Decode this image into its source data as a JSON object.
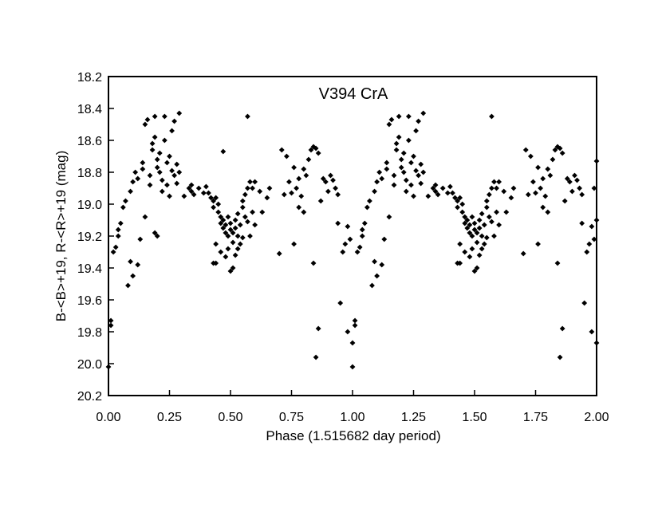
{
  "chart_data": {
    "type": "scatter",
    "title": "V394 CrA",
    "xlabel": "Phase (1.515682 day period)",
    "ylabel": "B-<B>+19, R-<R>+19 (mag)",
    "xlim": [
      0.0,
      2.0
    ],
    "ylim": [
      20.2,
      18.2
    ],
    "y_inverted": true,
    "grid": false,
    "legend": "none",
    "marker": "diamond",
    "marker_color": "#000000",
    "x_ticks": [
      "0.00",
      "0.25",
      "0.50",
      "0.75",
      "1.00",
      "1.25",
      "1.50",
      "1.75",
      "2.00"
    ],
    "y_ticks": [
      "18.2",
      "18.4",
      "18.6",
      "18.8",
      "19.0",
      "19.2",
      "19.4",
      "19.6",
      "19.8",
      "20.0",
      "20.2"
    ],
    "points": [
      [
        0.0,
        20.02
      ],
      [
        0.01,
        19.73
      ],
      [
        0.01,
        19.76
      ],
      [
        0.02,
        19.3
      ],
      [
        0.03,
        19.27
      ],
      [
        0.04,
        19.2
      ],
      [
        0.04,
        19.16
      ],
      [
        0.05,
        19.12
      ],
      [
        0.06,
        19.02
      ],
      [
        0.07,
        18.98
      ],
      [
        0.08,
        19.51
      ],
      [
        0.09,
        19.36
      ],
      [
        0.1,
        19.45
      ],
      [
        0.09,
        18.92
      ],
      [
        0.1,
        18.86
      ],
      [
        0.11,
        18.8
      ],
      [
        0.12,
        19.38
      ],
      [
        0.12,
        18.84
      ],
      [
        0.13,
        19.22
      ],
      [
        0.14,
        18.74
      ],
      [
        0.15,
        19.08
      ],
      [
        0.14,
        18.78
      ],
      [
        0.15,
        18.5
      ],
      [
        0.16,
        18.47
      ],
      [
        0.17,
        18.88
      ],
      [
        0.17,
        18.82
      ],
      [
        0.18,
        18.66
      ],
      [
        0.18,
        18.62
      ],
      [
        0.19,
        18.58
      ],
      [
        0.19,
        18.45
      ],
      [
        0.2,
        18.72
      ],
      [
        0.2,
        18.77
      ],
      [
        0.21,
        18.8
      ],
      [
        0.21,
        18.68
      ],
      [
        0.22,
        18.92
      ],
      [
        0.22,
        18.85
      ],
      [
        0.23,
        18.45
      ],
      [
        0.23,
        18.6
      ],
      [
        0.24,
        18.74
      ],
      [
        0.24,
        18.88
      ],
      [
        0.25,
        18.95
      ],
      [
        0.25,
        18.7
      ],
      [
        0.26,
        18.79
      ],
      [
        0.26,
        18.54
      ],
      [
        0.27,
        18.48
      ],
      [
        0.27,
        18.82
      ],
      [
        0.28,
        18.75
      ],
      [
        0.28,
        18.87
      ],
      [
        0.29,
        18.43
      ],
      [
        0.29,
        18.8
      ],
      [
        0.19,
        19.18
      ],
      [
        0.2,
        19.2
      ],
      [
        0.31,
        18.95
      ],
      [
        0.33,
        18.9
      ],
      [
        0.34,
        18.92
      ],
      [
        0.34,
        18.88
      ],
      [
        0.35,
        18.94
      ],
      [
        0.37,
        18.9
      ],
      [
        0.39,
        18.93
      ],
      [
        0.4,
        18.89
      ],
      [
        0.41,
        18.93
      ],
      [
        0.42,
        18.96
      ],
      [
        0.43,
        18.98
      ],
      [
        0.43,
        19.02
      ],
      [
        0.44,
        18.96
      ],
      [
        0.45,
        19.0
      ],
      [
        0.45,
        19.05
      ],
      [
        0.46,
        19.08
      ],
      [
        0.46,
        19.12
      ],
      [
        0.47,
        19.1
      ],
      [
        0.47,
        19.15
      ],
      [
        0.48,
        19.18
      ],
      [
        0.48,
        19.13
      ],
      [
        0.49,
        19.2
      ],
      [
        0.49,
        19.08
      ],
      [
        0.5,
        19.12
      ],
      [
        0.5,
        19.16
      ],
      [
        0.51,
        19.18
      ],
      [
        0.51,
        19.24
      ],
      [
        0.52,
        19.1
      ],
      [
        0.52,
        19.15
      ],
      [
        0.53,
        19.06
      ],
      [
        0.53,
        19.2
      ],
      [
        0.54,
        19.13
      ],
      [
        0.55,
        19.02
      ],
      [
        0.55,
        18.98
      ],
      [
        0.56,
        19.08
      ],
      [
        0.56,
        18.94
      ],
      [
        0.57,
        18.9
      ],
      [
        0.58,
        18.86
      ],
      [
        0.43,
        19.37
      ],
      [
        0.44,
        19.37
      ],
      [
        0.44,
        19.25
      ],
      [
        0.46,
        19.3
      ],
      [
        0.47,
        18.67
      ],
      [
        0.48,
        19.33
      ],
      [
        0.49,
        19.28
      ],
      [
        0.5,
        19.42
      ],
      [
        0.51,
        19.4
      ],
      [
        0.52,
        19.32
      ],
      [
        0.53,
        19.28
      ],
      [
        0.54,
        19.25
      ],
      [
        0.55,
        19.21
      ],
      [
        0.57,
        18.45
      ],
      [
        0.57,
        19.11
      ],
      [
        0.58,
        19.2
      ],
      [
        0.59,
        19.05
      ],
      [
        0.59,
        18.9
      ],
      [
        0.6,
        18.86
      ],
      [
        0.6,
        19.13
      ],
      [
        0.62,
        18.92
      ],
      [
        0.63,
        19.05
      ],
      [
        0.65,
        18.96
      ],
      [
        0.66,
        18.9
      ],
      [
        0.7,
        19.31
      ],
      [
        0.71,
        18.66
      ],
      [
        0.72,
        18.94
      ],
      [
        0.73,
        18.7
      ],
      [
        0.74,
        18.86
      ],
      [
        0.75,
        18.93
      ],
      [
        0.76,
        18.77
      ],
      [
        0.76,
        19.25
      ],
      [
        0.77,
        18.9
      ],
      [
        0.78,
        19.02
      ],
      [
        0.78,
        18.84
      ],
      [
        0.79,
        18.95
      ],
      [
        0.8,
        18.78
      ],
      [
        0.8,
        19.05
      ],
      [
        0.81,
        18.82
      ],
      [
        0.82,
        18.72
      ],
      [
        0.83,
        18.66
      ],
      [
        0.84,
        18.64
      ],
      [
        0.84,
        19.37
      ],
      [
        0.85,
        18.65
      ],
      [
        0.85,
        19.96
      ],
      [
        0.86,
        19.78
      ],
      [
        0.86,
        18.68
      ],
      [
        0.87,
        18.98
      ],
      [
        0.88,
        18.84
      ],
      [
        0.89,
        18.86
      ],
      [
        0.9,
        18.92
      ],
      [
        0.91,
        18.82
      ],
      [
        0.92,
        18.85
      ],
      [
        0.93,
        18.9
      ],
      [
        0.94,
        18.94
      ],
      [
        0.94,
        19.12
      ],
      [
        0.95,
        19.62
      ],
      [
        0.96,
        19.3
      ],
      [
        0.97,
        19.25
      ],
      [
        0.98,
        19.8
      ],
      [
        0.98,
        19.14
      ],
      [
        0.99,
        19.22
      ],
      [
        1.0,
        19.87
      ],
      [
        1.0,
        20.02
      ],
      [
        1.01,
        19.73
      ],
      [
        1.01,
        19.76
      ],
      [
        1.02,
        19.3
      ],
      [
        1.03,
        19.27
      ],
      [
        1.04,
        19.2
      ],
      [
        1.04,
        19.16
      ],
      [
        1.05,
        19.12
      ],
      [
        1.06,
        19.02
      ],
      [
        1.07,
        18.98
      ],
      [
        1.08,
        19.51
      ],
      [
        1.09,
        19.36
      ],
      [
        1.1,
        19.45
      ],
      [
        1.09,
        18.92
      ],
      [
        1.1,
        18.86
      ],
      [
        1.11,
        18.8
      ],
      [
        1.12,
        19.38
      ],
      [
        1.12,
        18.84
      ],
      [
        1.13,
        19.22
      ],
      [
        1.14,
        18.74
      ],
      [
        1.15,
        19.08
      ],
      [
        1.14,
        18.78
      ],
      [
        1.15,
        18.5
      ],
      [
        1.16,
        18.47
      ],
      [
        1.17,
        18.88
      ],
      [
        1.17,
        18.82
      ],
      [
        1.18,
        18.66
      ],
      [
        1.18,
        18.62
      ],
      [
        1.19,
        18.58
      ],
      [
        1.19,
        18.45
      ],
      [
        1.2,
        18.72
      ],
      [
        1.2,
        18.77
      ],
      [
        1.21,
        18.8
      ],
      [
        1.21,
        18.68
      ],
      [
        1.22,
        18.92
      ],
      [
        1.22,
        18.85
      ],
      [
        1.23,
        18.45
      ],
      [
        1.23,
        18.6
      ],
      [
        1.24,
        18.74
      ],
      [
        1.24,
        18.88
      ],
      [
        1.25,
        18.95
      ],
      [
        1.25,
        18.7
      ],
      [
        1.26,
        18.79
      ],
      [
        1.26,
        18.54
      ],
      [
        1.27,
        18.48
      ],
      [
        1.27,
        18.82
      ],
      [
        1.28,
        18.75
      ],
      [
        1.28,
        18.87
      ],
      [
        1.29,
        18.43
      ],
      [
        1.29,
        18.8
      ],
      [
        1.31,
        18.95
      ],
      [
        1.33,
        18.9
      ],
      [
        1.34,
        18.92
      ],
      [
        1.34,
        18.88
      ],
      [
        1.35,
        18.94
      ],
      [
        1.37,
        18.9
      ],
      [
        1.39,
        18.93
      ],
      [
        1.4,
        18.89
      ],
      [
        1.41,
        18.93
      ],
      [
        1.42,
        18.96
      ],
      [
        1.43,
        18.98
      ],
      [
        1.43,
        19.02
      ],
      [
        1.44,
        18.96
      ],
      [
        1.45,
        19.0
      ],
      [
        1.45,
        19.05
      ],
      [
        1.46,
        19.08
      ],
      [
        1.46,
        19.12
      ],
      [
        1.47,
        19.1
      ],
      [
        1.47,
        19.15
      ],
      [
        1.48,
        19.18
      ],
      [
        1.48,
        19.13
      ],
      [
        1.49,
        19.2
      ],
      [
        1.49,
        19.08
      ],
      [
        1.5,
        19.12
      ],
      [
        1.5,
        19.16
      ],
      [
        1.51,
        19.18
      ],
      [
        1.51,
        19.24
      ],
      [
        1.52,
        19.1
      ],
      [
        1.52,
        19.15
      ],
      [
        1.53,
        19.06
      ],
      [
        1.53,
        19.2
      ],
      [
        1.54,
        19.13
      ],
      [
        1.55,
        19.02
      ],
      [
        1.55,
        18.98
      ],
      [
        1.56,
        19.08
      ],
      [
        1.56,
        18.94
      ],
      [
        1.57,
        18.9
      ],
      [
        1.58,
        18.86
      ],
      [
        1.43,
        19.37
      ],
      [
        1.44,
        19.37
      ],
      [
        1.44,
        19.25
      ],
      [
        1.46,
        19.3
      ],
      [
        1.48,
        19.33
      ],
      [
        1.49,
        19.28
      ],
      [
        1.5,
        19.42
      ],
      [
        1.51,
        19.4
      ],
      [
        1.52,
        19.32
      ],
      [
        1.53,
        19.28
      ],
      [
        1.54,
        19.25
      ],
      [
        1.55,
        19.21
      ],
      [
        1.57,
        18.45
      ],
      [
        1.57,
        19.11
      ],
      [
        1.58,
        19.2
      ],
      [
        1.59,
        19.05
      ],
      [
        1.59,
        18.9
      ],
      [
        1.6,
        18.86
      ],
      [
        1.6,
        19.13
      ],
      [
        1.62,
        18.92
      ],
      [
        1.63,
        19.05
      ],
      [
        1.65,
        18.96
      ],
      [
        1.66,
        18.9
      ],
      [
        1.7,
        19.31
      ],
      [
        1.71,
        18.66
      ],
      [
        1.72,
        18.94
      ],
      [
        1.73,
        18.7
      ],
      [
        1.74,
        18.86
      ],
      [
        1.75,
        18.93
      ],
      [
        1.76,
        18.77
      ],
      [
        1.76,
        19.25
      ],
      [
        1.77,
        18.9
      ],
      [
        1.78,
        19.02
      ],
      [
        1.78,
        18.84
      ],
      [
        1.79,
        18.95
      ],
      [
        1.8,
        18.78
      ],
      [
        1.8,
        19.05
      ],
      [
        1.81,
        18.82
      ],
      [
        1.82,
        18.72
      ],
      [
        1.83,
        18.66
      ],
      [
        1.84,
        18.64
      ],
      [
        1.84,
        19.37
      ],
      [
        1.85,
        18.65
      ],
      [
        1.85,
        19.96
      ],
      [
        1.86,
        19.78
      ],
      [
        1.86,
        18.68
      ],
      [
        1.87,
        18.98
      ],
      [
        1.88,
        18.84
      ],
      [
        1.89,
        18.86
      ],
      [
        1.9,
        18.92
      ],
      [
        1.91,
        18.82
      ],
      [
        1.92,
        18.85
      ],
      [
        1.93,
        18.9
      ],
      [
        1.94,
        18.94
      ],
      [
        1.94,
        19.12
      ],
      [
        1.95,
        19.62
      ],
      [
        1.96,
        19.3
      ],
      [
        1.97,
        19.25
      ],
      [
        1.98,
        19.8
      ],
      [
        1.98,
        19.14
      ],
      [
        1.99,
        19.22
      ],
      [
        1.99,
        18.9
      ],
      [
        2.0,
        19.87
      ],
      [
        2.0,
        18.73
      ],
      [
        2.0,
        19.1
      ]
    ]
  }
}
